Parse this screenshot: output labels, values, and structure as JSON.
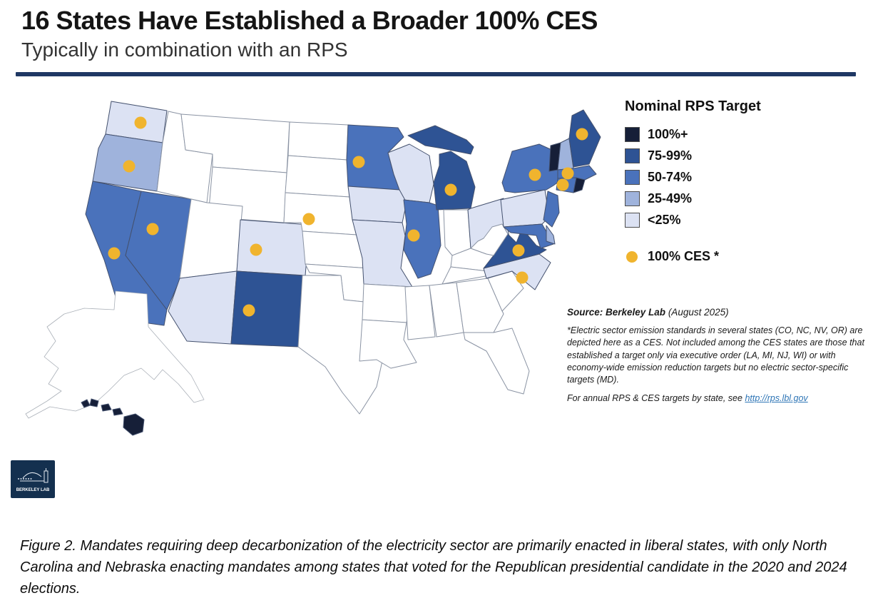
{
  "title": "16 States Have Established a Broader 100% CES",
  "subtitle": "Typically in combination with an RPS",
  "legend": {
    "title": "Nominal RPS Target",
    "ces_label": "100% CES *"
  },
  "source": {
    "label_bold": "Source: Berkeley Lab",
    "label_rest": " (August 2025)",
    "note": "*Electric sector emission standards in several states (CO, NC, NV, OR) are depicted here as a CES. Not included among the CES states are those that established a target only via executive order (LA, MI, NJ, WI) or with economy-wide emission reduction targets but no electric sector-specific targets (MD).",
    "link_prefix": "For annual RPS & CES targets by state, see ",
    "link_text": "http://rps.lbl.gov"
  },
  "logo": {
    "text": "BERKELEY LAB"
  },
  "caption": "Figure 2. Mandates requiring deep decarbonization of the electricity sector are primarily enacted in liberal states, with only North Carolina and Nebraska enacting mandates among states that voted for the Republican presidential candidate in the 2020 and 2024 elections.",
  "colors": {
    "rule": "#1f3864",
    "ces_dot": "#f0b42e",
    "no_rps_fill": "#ffffff",
    "state_stroke": "#8a93a3",
    "outline_stroke": "#aab0b8",
    "logo_bg": "#14304f",
    "link": "#2e75b6"
  },
  "chart_data": {
    "type": "choropleth_map",
    "region": "United States (50 states)",
    "title": "16 States Have Established a Broader 100% CES",
    "subtitle": "Typically in combination with an RPS",
    "legend_title": "Nominal RPS Target",
    "legend_position": "top-right",
    "categories": [
      {
        "label": "100%+",
        "color": "#161f38",
        "states": [
          "VT",
          "RI",
          "HI"
        ]
      },
      {
        "label": "75-99%",
        "color": "#2e5394",
        "states": [
          "ME",
          "MI",
          "NM",
          "VA"
        ]
      },
      {
        "label": "50-74%",
        "color": "#4a72bb",
        "states": [
          "CA",
          "NV",
          "MN",
          "IL",
          "NY",
          "NJ",
          "MD",
          "MA",
          "CT"
        ]
      },
      {
        "label": "25-49%",
        "color": "#9fb3dc",
        "states": [
          "OR",
          "NH",
          "DE"
        ]
      },
      {
        "label": "<25%",
        "color": "#dce2f3",
        "states": [
          "WA",
          "AZ",
          "CO",
          "WI",
          "IA",
          "MO",
          "OH",
          "PA",
          "NC"
        ]
      }
    ],
    "no_rps_states": [
      "AK",
      "ID",
      "MT",
      "WY",
      "UT",
      "ND",
      "SD",
      "NE",
      "KS",
      "OK",
      "TX",
      "AR",
      "LA",
      "MS",
      "AL",
      "GA",
      "FL",
      "SC",
      "TN",
      "KY",
      "WV",
      "IN"
    ],
    "ces_marker_label": "100% CES *",
    "ces_states": [
      "WA",
      "OR",
      "CA",
      "NV",
      "CO",
      "NM",
      "NE",
      "MN",
      "MI",
      "IL",
      "NY",
      "ME",
      "MA",
      "CT",
      "VA",
      "NC"
    ],
    "ces_state_count": 16
  }
}
